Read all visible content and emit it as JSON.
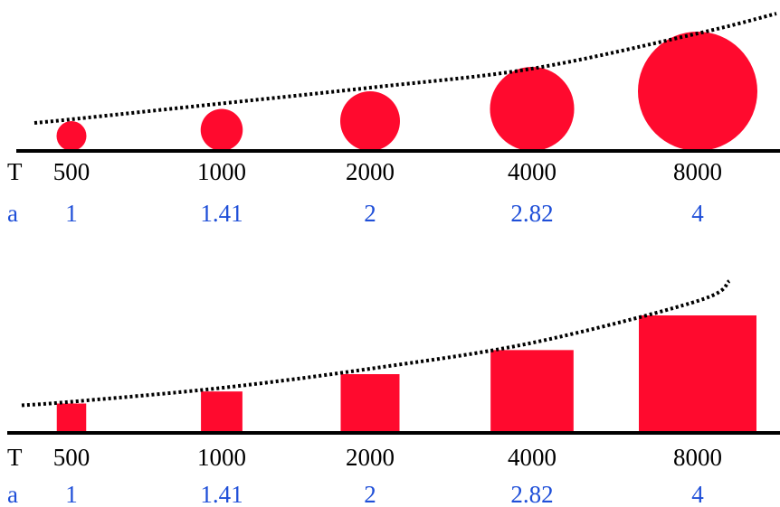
{
  "colors": {
    "shape_fill": "#ff0a2e",
    "t_text": "#000000",
    "a_text": "#1f4fd8",
    "baseline": "#000000",
    "trend": "#000000"
  },
  "panels": [
    {
      "shape": "circle",
      "row_labels": {
        "t": "T",
        "a": "a"
      },
      "items": [
        {
          "t": "500",
          "a": "1",
          "size": 1
        },
        {
          "t": "1000",
          "a": "1.41",
          "size": 1.41
        },
        {
          "t": "2000",
          "a": "2",
          "size": 2
        },
        {
          "t": "4000",
          "a": "2.82",
          "size": 2.82
        },
        {
          "t": "8000",
          "a": "4",
          "size": 4
        }
      ]
    },
    {
      "shape": "square",
      "row_labels": {
        "t": "T",
        "a": "a"
      },
      "items": [
        {
          "t": "500",
          "a": "1",
          "size": 1
        },
        {
          "t": "1000",
          "a": "1.41",
          "size": 1.41
        },
        {
          "t": "2000",
          "a": "2",
          "size": 2
        },
        {
          "t": "4000",
          "a": "2.82",
          "size": 2.82
        },
        {
          "t": "8000",
          "a": "4",
          "size": 4
        }
      ]
    }
  ]
}
